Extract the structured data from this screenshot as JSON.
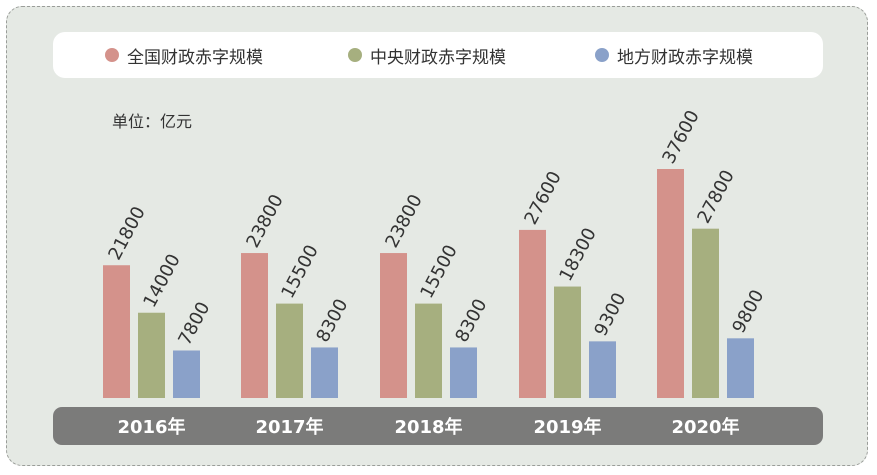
{
  "chart_data": {
    "type": "bar",
    "unit_label": "单位：亿元",
    "categories": [
      "2016年",
      "2017年",
      "2018年",
      "2019年",
      "2020年"
    ],
    "series": [
      {
        "name": "全国财政赤字规模",
        "color": "#d4928b",
        "values": [
          21800,
          23800,
          23800,
          27600,
          37600
        ]
      },
      {
        "name": "中央财政赤字规模",
        "color": "#a6af7f",
        "values": [
          14000,
          15500,
          15500,
          18300,
          27800
        ]
      },
      {
        "name": "地方财政赤字规模",
        "color": "#8aa1c9",
        "values": [
          7800,
          8300,
          8300,
          9300,
          9800
        ]
      }
    ],
    "ylim": [
      0,
      37600
    ],
    "axis_band_color": "#7b7b7a",
    "grid": false,
    "legend_position": "top"
  }
}
